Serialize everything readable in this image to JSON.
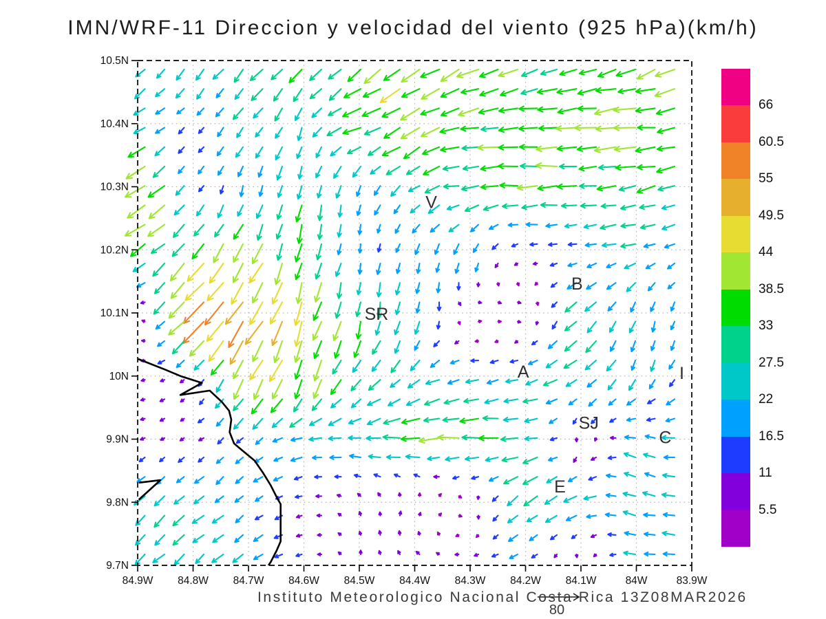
{
  "title": "IMN/WRF-11 Direccion y velocidad del viento (925 hPa)(km/h)",
  "footer": {
    "credit": "Instituto Meteorologico Nacional Costa Rica  13Z08MAR2026",
    "ref_label": "80",
    "ref_speed_km_h": 80
  },
  "axes": {
    "y_ticks": [
      "10.5N",
      "10.4N",
      "10.3N",
      "10.2N",
      "10.1N",
      "10N",
      "9.9N",
      "9.8N",
      "9.7N"
    ],
    "x_ticks": [
      "84.9W",
      "84.8W",
      "84.7W",
      "84.6W",
      "84.5W",
      "84.4W",
      "84.3W",
      "84.2W",
      "84.1W",
      "84W",
      "83.9W"
    ]
  },
  "colorbar": {
    "boundary_labels_top_to_bottom": [
      "66",
      "60.5",
      "55",
      "49.5",
      "44",
      "38.5",
      "33",
      "27.5",
      "22",
      "16.5",
      "11",
      "5.5"
    ],
    "colors_bottom_to_top": [
      "#A000C8",
      "#8200DC",
      "#1E3CFF",
      "#00A0FF",
      "#00C8C8",
      "#00D28C",
      "#00DC00",
      "#A0E632",
      "#E6DC32",
      "#E6AF2D",
      "#F08228",
      "#FA3C3C",
      "#F00082"
    ]
  },
  "chart_data": {
    "type": "quiver",
    "title": "IMN/WRF-11 Direccion y velocidad del viento (925 hPa)(km/h)",
    "units": "km/h",
    "lon_range_W": [
      84.9,
      83.9
    ],
    "lat_range_N": [
      9.7,
      10.5
    ],
    "grid_on": true,
    "speed_levels": [
      5.5,
      11,
      16.5,
      22,
      27.5,
      33,
      38.5,
      44,
      49.5,
      55,
      60.5,
      66
    ],
    "colors": [
      "#A000C8",
      "#8200DC",
      "#1E3CFF",
      "#00A0FF",
      "#00C8C8",
      "#00D28C",
      "#00DC00",
      "#A0E632",
      "#E6DC32",
      "#E6AF2D",
      "#F08228",
      "#FA3C3C",
      "#F00082"
    ],
    "sample_lons_W": [
      84.9,
      84.8,
      84.7,
      84.6,
      84.5,
      84.4,
      84.3,
      84.2,
      84.1,
      84.0,
      83.9
    ],
    "sample_lats_N": [
      10.5,
      10.4,
      10.3,
      10.2,
      10.1,
      10.0,
      9.9,
      9.8,
      9.7
    ],
    "dir_convention": "direction arrow points toward, degrees CCW from East (0=E, 90=N, 180=W, 270=S)",
    "speed_km_h": [
      [
        25,
        25,
        28,
        32,
        35,
        45,
        40,
        36,
        36,
        36,
        36
      ],
      [
        26,
        14,
        25,
        26,
        35,
        40,
        37,
        38,
        38,
        38,
        36
      ],
      [
        55,
        15,
        20,
        28,
        20,
        26,
        30,
        36,
        36,
        34,
        30
      ],
      [
        30,
        38,
        42,
        35,
        16,
        20,
        24,
        9,
        15,
        26,
        18
      ],
      [
        9,
        60,
        54,
        45,
        33,
        26,
        9,
        10,
        32,
        22,
        16
      ],
      [
        8,
        9,
        45,
        40,
        30,
        25,
        24,
        24,
        28,
        22,
        16
      ],
      [
        8,
        9,
        18,
        24,
        25,
        36,
        36,
        34,
        9,
        20,
        24
      ],
      [
        26,
        26,
        20,
        10,
        8,
        9,
        9,
        32,
        26,
        22,
        24
      ],
      [
        26,
        27,
        25,
        12,
        8,
        9,
        10,
        14,
        10,
        22,
        18
      ]
    ],
    "dir_deg_toward": [
      [
        225,
        228,
        230,
        225,
        220,
        212,
        207,
        200,
        195,
        200,
        210
      ],
      [
        205,
        230,
        230,
        250,
        200,
        210,
        190,
        186,
        185,
        185,
        190
      ],
      [
        215,
        230,
        255,
        260,
        255,
        215,
        185,
        183,
        183,
        188,
        205
      ],
      [
        215,
        228,
        242,
        255,
        260,
        250,
        250,
        185,
        185,
        190,
        215
      ],
      [
        85,
        227,
        235,
        252,
        258,
        260,
        20,
        350,
        225,
        250,
        255
      ],
      [
        190,
        215,
        240,
        250,
        235,
        215,
        190,
        195,
        215,
        245,
        235
      ],
      [
        200,
        210,
        225,
        195,
        185,
        182,
        183,
        183,
        300,
        170,
        180
      ],
      [
        222,
        222,
        220,
        190,
        120,
        60,
        330,
        222,
        200,
        160,
        175
      ],
      [
        220,
        222,
        218,
        195,
        90,
        140,
        185,
        190,
        330,
        180,
        185
      ]
    ],
    "stations": [
      {
        "label": "V",
        "lon_W": 84.37,
        "lat_N": 10.275
      },
      {
        "label": "B",
        "lon_W": 84.107,
        "lat_N": 10.146
      },
      {
        "label": "SR",
        "lon_W": 84.469,
        "lat_N": 10.098
      },
      {
        "label": "A",
        "lon_W": 84.204,
        "lat_N": 10.006
      },
      {
        "label": "SJ",
        "lon_W": 84.086,
        "lat_N": 9.925
      },
      {
        "label": "C",
        "lon_W": 83.948,
        "lat_N": 9.902
      },
      {
        "label": "E",
        "lon_W": 84.138,
        "lat_N": 9.824
      },
      {
        "label": "I",
        "lon_W": 83.918,
        "lat_N": 10.004
      }
    ],
    "coastline": [
      [
        [
          84.899,
          10.027
        ],
        [
          84.85,
          10.01
        ],
        [
          84.823,
          10.0
        ],
        [
          84.784,
          9.989
        ],
        [
          84.823,
          9.97
        ],
        [
          84.77,
          9.977
        ],
        [
          84.748,
          9.959
        ],
        [
          84.735,
          9.945
        ],
        [
          84.731,
          9.931
        ],
        [
          84.734,
          9.911
        ],
        [
          84.726,
          9.893
        ],
        [
          84.711,
          9.882
        ],
        [
          84.689,
          9.866
        ],
        [
          84.674,
          9.847
        ],
        [
          84.66,
          9.827
        ],
        [
          84.648,
          9.806
        ],
        [
          84.642,
          9.797
        ],
        [
          84.642,
          9.738
        ],
        [
          84.649,
          9.724
        ],
        [
          84.66,
          9.705
        ],
        [
          84.664,
          9.7
        ]
      ],
      [
        [
          84.898,
          9.831
        ],
        [
          84.859,
          9.835
        ],
        [
          84.898,
          9.804
        ]
      ]
    ]
  }
}
